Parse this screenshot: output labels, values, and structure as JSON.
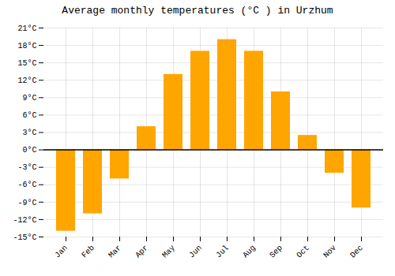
{
  "chart_data": {
    "type": "bar",
    "title": "Average monthly temperatures (°C ) in Urzhum",
    "categories": [
      "Jan",
      "Feb",
      "Mar",
      "Apr",
      "May",
      "Jun",
      "Jul",
      "Aug",
      "Sep",
      "Oct",
      "Nov",
      "Dec"
    ],
    "values": [
      -14,
      -11,
      -5,
      4,
      13,
      17,
      19,
      17,
      10,
      2.5,
      -4,
      -10
    ],
    "color": "#FFA500",
    "ylim": [
      -15,
      21
    ],
    "yticks": [
      {
        "value": -15,
        "label": "-15°C"
      },
      {
        "value": -12,
        "label": "-12°C"
      },
      {
        "value": -9,
        "label": "-9°C"
      },
      {
        "value": -6,
        "label": "-6°C"
      },
      {
        "value": -3,
        "label": "-3°C"
      },
      {
        "value": 0,
        "label": "0°C"
      },
      {
        "value": 3,
        "label": "3°C"
      },
      {
        "value": 6,
        "label": "6°C"
      },
      {
        "value": 9,
        "label": "9°C"
      },
      {
        "value": 12,
        "label": "12°C"
      },
      {
        "value": 15,
        "label": "15°C"
      },
      {
        "value": 18,
        "label": "18°C"
      },
      {
        "value": 21,
        "label": "21°C"
      }
    ],
    "grid": true
  }
}
